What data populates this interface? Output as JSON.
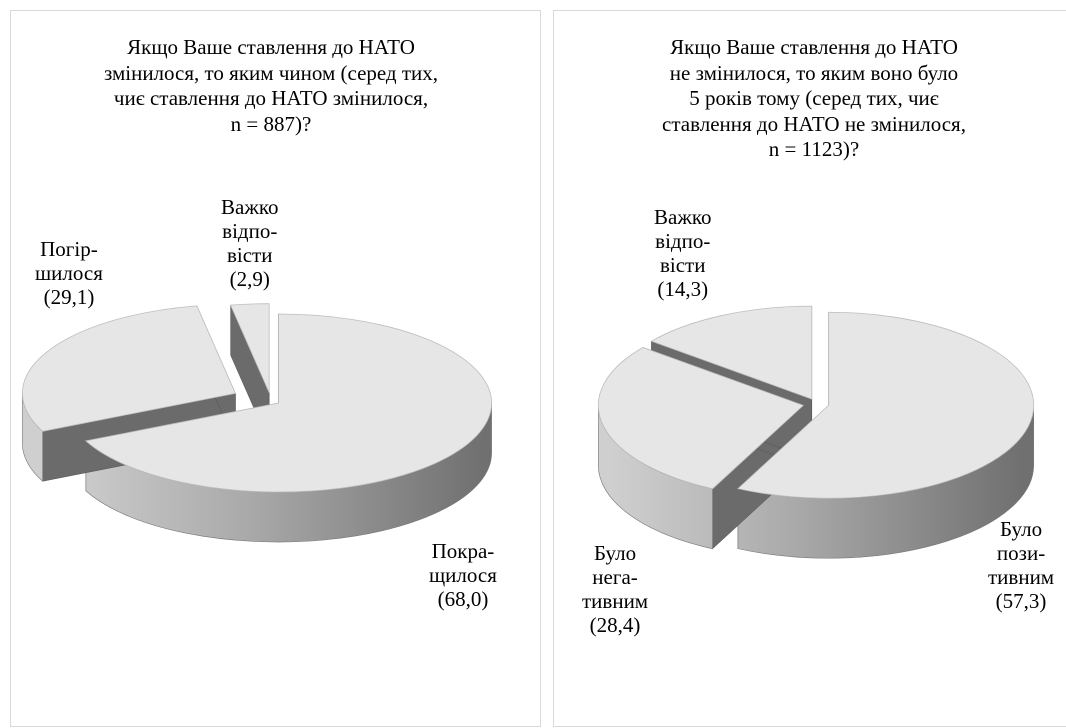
{
  "charts": [
    {
      "id": "left",
      "title_lines": [
        "Якщо Ваше ставлення до НАТО",
        "змінилося, то яким чином (серед тих,",
        "чиє ставлення до НАТО змінилося,",
        "n = 887)?"
      ],
      "labels": [
        {
          "lines": [
            "Покра-",
            "щилося",
            "(68,0)"
          ]
        },
        {
          "lines": [
            "Погір-",
            "шилося",
            "(29,1)"
          ]
        },
        {
          "lines": [
            "Важко",
            "відпо-",
            "віcти",
            "(2,9)"
          ]
        }
      ]
    },
    {
      "id": "right",
      "title_lines": [
        "Якщо Ваше ставлення до НАТО",
        "не змінилося, то яким воно було",
        "5 років тому (серед тих, чиє",
        "ставлення до НАТО не змінилося,",
        "n = 1123)?"
      ],
      "labels": [
        {
          "lines": [
            "Було",
            "пози-",
            "тивним",
            "(57,3)"
          ]
        },
        {
          "lines": [
            "Було",
            "нега-",
            "тивним",
            "(28,4)"
          ]
        },
        {
          "lines": [
            "Важко",
            "відпо-",
            "віcти",
            "(14,3)"
          ]
        }
      ]
    }
  ],
  "colors": {
    "top": "#e6e6e6",
    "side_light": "#cfcfcf",
    "side_dark": "#707070",
    "wall": "#6b6b6b"
  },
  "chart_data": [
    {
      "type": "pie",
      "title": "Якщо Ваше ставлення до НАТО змінилося, то яким чином (серед тих, чиє ставлення до НАТО змінилося, n = 887)?",
      "categories": [
        "Покращилося",
        "Погіршилося",
        "Важко відповісти"
      ],
      "values": [
        68.0,
        29.1,
        2.9
      ],
      "style": "3d-exploded"
    },
    {
      "type": "pie",
      "title": "Якщо Ваше ставлення до НАТО не змінилося, то яким воно було 5 років тому (серед тих, чиє ставлення до НАТО не змінилося, n = 1123)?",
      "categories": [
        "Було позитивним",
        "Було негативним",
        "Важко відповісти"
      ],
      "values": [
        57.3,
        28.4,
        14.3
      ],
      "style": "3d-exploded"
    }
  ]
}
